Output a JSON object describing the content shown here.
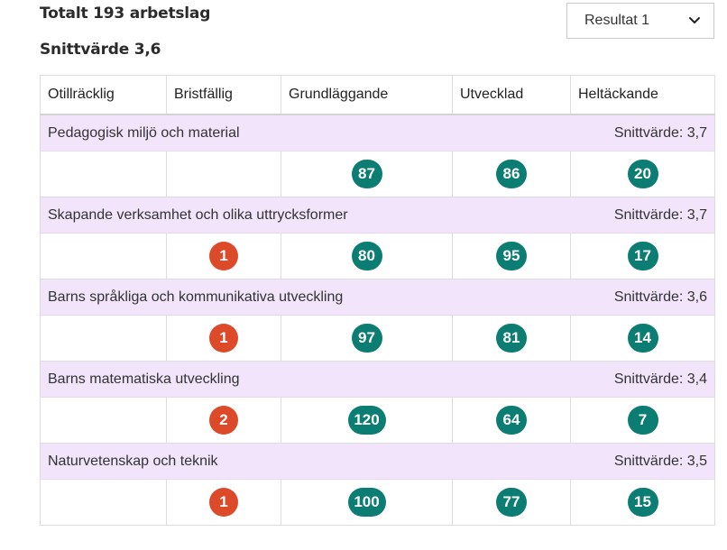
{
  "summary": {
    "total": "Totalt 193 arbetslag",
    "average": "Snittvärde 3,6"
  },
  "result_select": {
    "value": "Resultat 1",
    "icon": "chevron-down-icon"
  },
  "colors": {
    "green": "#0b7d72",
    "red": "#dc4a2a",
    "row_bg": "#f1e4fb"
  },
  "columns": [
    "Otillräcklig",
    "Bristfällig",
    "Grundläggande",
    "Utvecklad",
    "Heltäckande"
  ],
  "areas": [
    {
      "name": "Pedagogisk miljö och material",
      "average": "Snittvärde: 3,7",
      "counts": [
        "",
        "",
        "87",
        "86",
        "20"
      ]
    },
    {
      "name": "Skapande verksamhet och olika uttrycksformer",
      "average": "Snittvärde: 3,7",
      "counts": [
        "",
        "1",
        "80",
        "95",
        "17"
      ]
    },
    {
      "name": "Barns språkliga och kommunikativa utveckling",
      "average": "Snittvärde: 3,6",
      "counts": [
        "",
        "1",
        "97",
        "81",
        "14"
      ]
    },
    {
      "name": "Barns matematiska utveckling",
      "average": "Snittvärde: 3,4",
      "counts": [
        "",
        "2",
        "120",
        "64",
        "7"
      ]
    },
    {
      "name": "Naturvetenskap och teknik",
      "average": "Snittvärde: 3,5",
      "counts": [
        "",
        "1",
        "100",
        "77",
        "15"
      ]
    }
  ]
}
